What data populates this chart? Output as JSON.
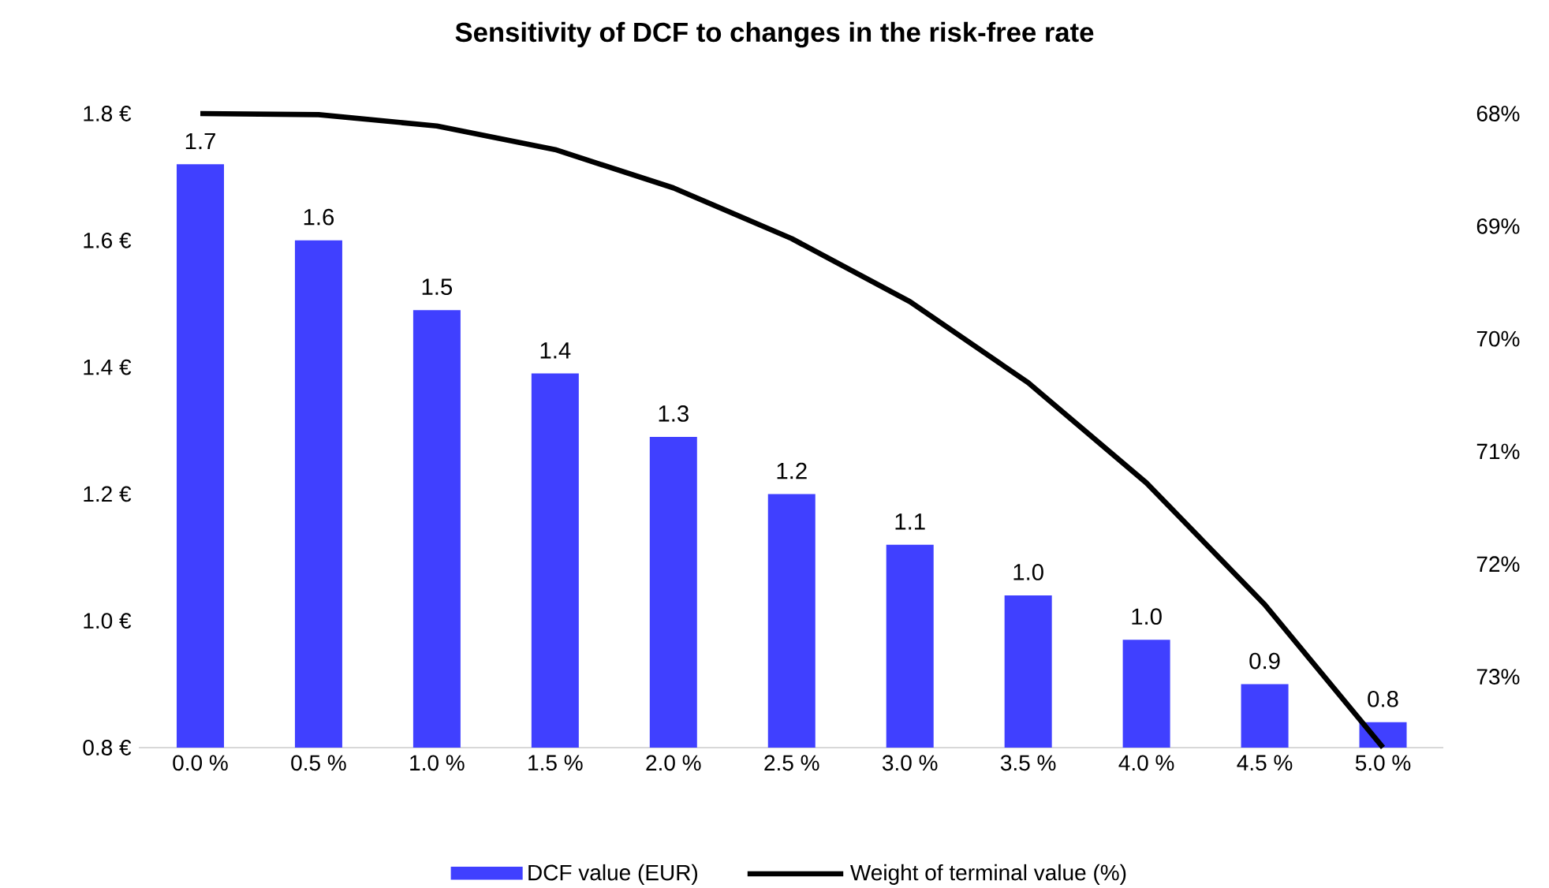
{
  "chart_data": {
    "type": "bar",
    "title": "Sensitivity of DCF to changes in the risk-free rate",
    "categories": [
      "0.0 %",
      "0.5 %",
      "1.0 %",
      "1.5 %",
      "2.0 %",
      "2.5 %",
      "3.0 %",
      "3.5 %",
      "4.0 %",
      "4.5 %",
      "5.0 %"
    ],
    "series": [
      {
        "name": "DCF value (EUR)",
        "color": "#4040ff",
        "values": [
          1.72,
          1.6,
          1.49,
          1.39,
          1.29,
          1.2,
          1.12,
          1.04,
          0.97,
          0.9,
          0.84
        ],
        "value_labels": [
          "1.7",
          "1.6",
          "1.5",
          "1.4",
          "1.3",
          "1.2",
          "1.1",
          "1.0",
          "1.0",
          "0.9",
          "0.8"
        ]
      },
      {
        "name": "Weight of terminal value (%)",
        "type": "line",
        "axis": "y2",
        "color": "#000000",
        "values": [
          68.0,
          68.01,
          68.11,
          68.32,
          68.66,
          69.11,
          69.67,
          70.39,
          71.28,
          72.36,
          73.63
        ]
      }
    ],
    "ylim": [
      0.8,
      1.8
    ],
    "yticks": [
      {
        "value": 0.8,
        "label": "0.8 €"
      },
      {
        "value": 1.0,
        "label": "1.0 €"
      },
      {
        "value": 1.2,
        "label": "1.2 €"
      },
      {
        "value": 1.4,
        "label": "1.4 €"
      },
      {
        "value": 1.6,
        "label": "1.6 €"
      },
      {
        "value": 1.8,
        "label": "1.8 €"
      }
    ],
    "y2lim": [
      73.63,
      68
    ],
    "y2ticks": [
      {
        "value": 68,
        "label": "68%"
      },
      {
        "value": 69,
        "label": "69%"
      },
      {
        "value": 70,
        "label": "70%"
      },
      {
        "value": 71,
        "label": "71%"
      },
      {
        "value": 72,
        "label": "72%"
      },
      {
        "value": 73,
        "label": "73%"
      }
    ],
    "grid": false,
    "legend": "bottom",
    "marker": "none",
    "line_style": "solid"
  }
}
